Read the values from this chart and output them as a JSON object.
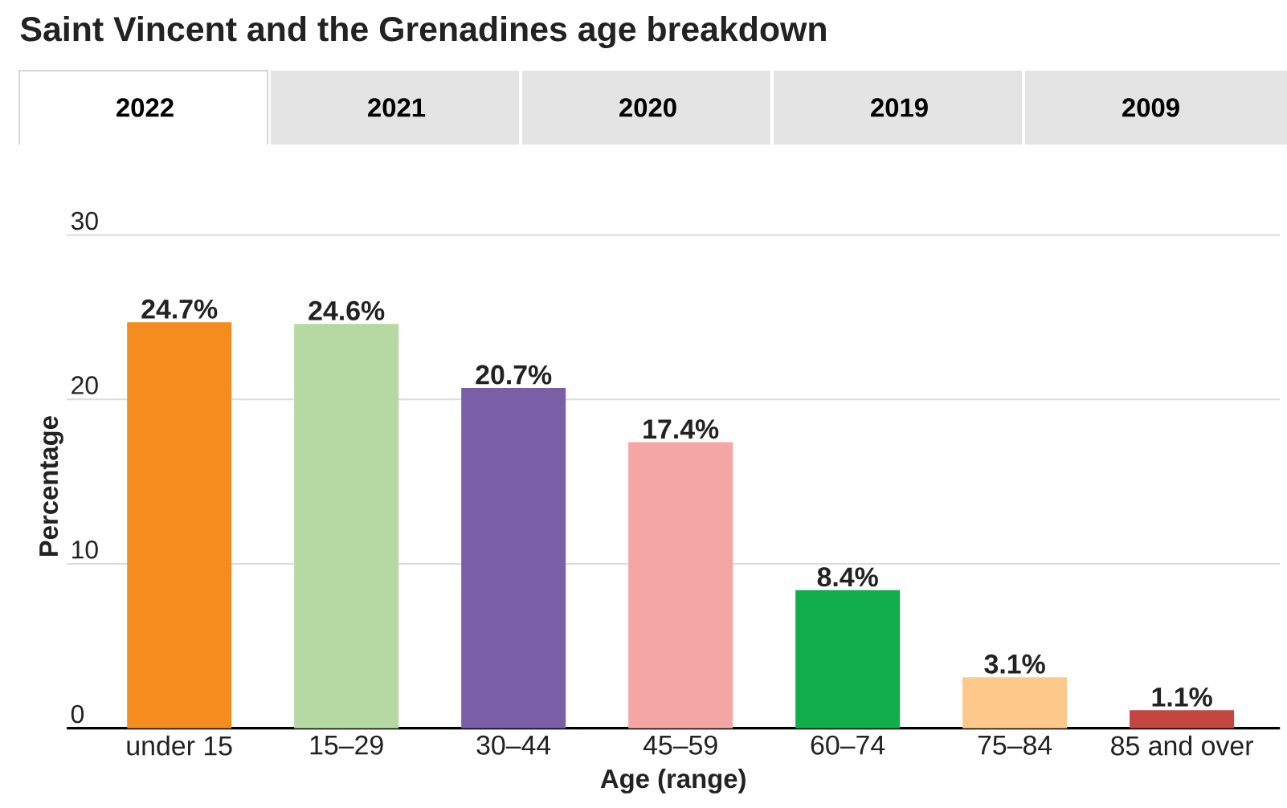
{
  "chart_data": {
    "type": "bar",
    "title": "Saint Vincent and the Grenadines age breakdown",
    "annotations": [
      "2022",
      "2021",
      "2020",
      "2019",
      "2009"
    ],
    "xlabel": "Age (range)",
    "ylabel": "Percentage",
    "categories": [
      "under 15",
      "15–29",
      "30–44",
      "45–59",
      "60–74",
      "75–84",
      "85 and over"
    ],
    "values": [
      24.7,
      24.6,
      20.7,
      17.4,
      8.4,
      3.1,
      1.1
    ],
    "colors": [
      "#f58c1e",
      "#b6d8a2",
      "#7a5fa6",
      "#f4a6a4",
      "#12ad4b",
      "#fdc98a",
      "#c3463f"
    ],
    "value_labels": [
      "24.7%",
      "24.6%",
      "20.7%",
      "17.4%",
      "8.4%",
      "3.1%",
      "1.1%"
    ],
    "ylim": [
      0,
      30
    ],
    "yticks": [
      0,
      10,
      20,
      30
    ],
    "grid": "y"
  }
}
